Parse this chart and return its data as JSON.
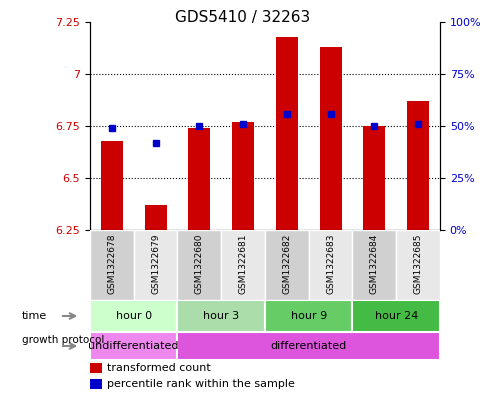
{
  "title": "GDS5410 / 32263",
  "samples": [
    "GSM1322678",
    "GSM1322679",
    "GSM1322680",
    "GSM1322681",
    "GSM1322682",
    "GSM1322683",
    "GSM1322684",
    "GSM1322685"
  ],
  "transformed_count": [
    6.68,
    6.37,
    6.74,
    6.77,
    7.18,
    7.13,
    6.75,
    6.87
  ],
  "percentile_rank": [
    49,
    42,
    50,
    51,
    56,
    56,
    50,
    51
  ],
  "ylim_left": [
    6.25,
    7.25
  ],
  "ylim_right": [
    0,
    100
  ],
  "yticks_left": [
    6.25,
    6.5,
    6.75,
    7.0,
    7.25
  ],
  "ytick_labels_left": [
    "6.25",
    "6.5",
    "6.75",
    "7",
    "7.25"
  ],
  "yticks_right": [
    0,
    25,
    50,
    75,
    100
  ],
  "ytick_labels_right": [
    "0%",
    "25%",
    "50%",
    "75%",
    "100%"
  ],
  "bar_color": "#cc0000",
  "dot_color": "#0000cc",
  "time_groups": [
    {
      "label": "hour 0",
      "start": 0,
      "end": 2,
      "color": "#ccffcc"
    },
    {
      "label": "hour 3",
      "start": 2,
      "end": 4,
      "color": "#aaddaa"
    },
    {
      "label": "hour 9",
      "start": 4,
      "end": 6,
      "color": "#66cc66"
    },
    {
      "label": "hour 24",
      "start": 6,
      "end": 8,
      "color": "#44bb44"
    }
  ],
  "growth_protocol_groups": [
    {
      "label": "undifferentiated",
      "start": 0,
      "end": 2,
      "color": "#ee88ee"
    },
    {
      "label": "differentiated",
      "start": 2,
      "end": 8,
      "color": "#dd55dd"
    }
  ],
  "legend_items": [
    {
      "label": "transformed count",
      "color": "#cc0000"
    },
    {
      "label": "percentile rank within the sample",
      "color": "#0000cc"
    }
  ]
}
